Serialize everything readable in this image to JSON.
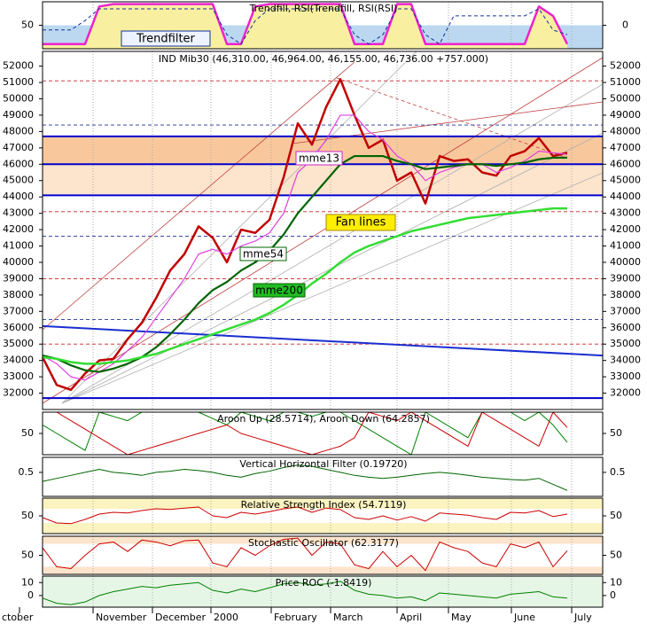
{
  "chart_data": [
    {
      "type": "line",
      "title": "Trendfill, RSI(Trendfill, RSI(RSI)",
      "label": "Trendfilter",
      "ylim": [
        0,
        100
      ],
      "yticks": [
        50
      ],
      "y2lim": [
        -1,
        1
      ],
      "y2ticks": [
        0
      ],
      "bands": [
        {
          "range": [
            0,
            50
          ],
          "color": "#bcd8f0"
        }
      ],
      "series": [
        {
          "color": "#ee22cc",
          "fill": "#f8f0a0",
          "width": 2.5,
          "values": [
            10,
            10,
            10,
            10,
            90,
            95,
            95,
            95,
            95,
            95,
            95,
            95,
            95,
            10,
            10,
            90,
            95,
            95,
            95,
            95,
            95,
            95,
            10,
            10,
            10,
            95,
            95,
            10,
            10,
            10,
            10,
            10,
            10,
            10,
            10,
            90,
            70,
            10
          ]
        },
        {
          "color": "#1030a0",
          "dash": true,
          "width": 1,
          "values": [
            40,
            40,
            40,
            60,
            85,
            85,
            85,
            85,
            85,
            85,
            85,
            85,
            85,
            30,
            10,
            60,
            85,
            85,
            85,
            85,
            85,
            85,
            30,
            10,
            30,
            85,
            85,
            30,
            10,
            70,
            70,
            70,
            70,
            70,
            70,
            85,
            40,
            30
          ]
        }
      ]
    },
    {
      "type": "line",
      "title": "IND Mib30 (46,310.00, 46,964.00, 46,155.00, 46,736.00 +757.000)",
      "annotation": "Fan lines",
      "ylim": [
        31000,
        52900
      ],
      "yticks": [
        32000,
        33000,
        34000,
        35000,
        36000,
        37000,
        38000,
        39000,
        40000,
        41000,
        42000,
        43000,
        44000,
        45000,
        46000,
        47000,
        48000,
        49000,
        50000,
        51000,
        52000
      ],
      "bands": [
        {
          "range": [
            46000,
            47700
          ],
          "color": "#f8c89c"
        },
        {
          "range": [
            44100,
            46000
          ],
          "color": "#fde4cc"
        }
      ],
      "hlines": [
        {
          "value": 31700,
          "color": "#0000cc"
        },
        {
          "value": 44100,
          "color": "#0000cc"
        },
        {
          "value": 46000,
          "color": "#0000cc"
        },
        {
          "value": 47700,
          "color": "#0000cc"
        }
      ],
      "dashed_lines": [
        51100,
        48400,
        43100,
        41600,
        39000,
        36500,
        35000
      ],
      "trendline": [
        36100,
        34300
      ],
      "x_labels": [
        "ctober",
        "November",
        "December",
        "2000",
        "February",
        "March",
        "April",
        "May",
        "June",
        "July"
      ],
      "series": [
        {
          "color": "#c00000",
          "width": 2.5,
          "values": [
            34200,
            32500,
            32200,
            33200,
            34000,
            34100,
            35300,
            36300,
            37800,
            39500,
            40500,
            42200,
            41500,
            40000,
            42000,
            41800,
            42600,
            45200,
            48500,
            47200,
            49500,
            51200,
            49000,
            47000,
            47500,
            45000,
            45500,
            43600,
            46500,
            46200,
            46300,
            45500,
            45300,
            46500,
            46800,
            47600,
            46500,
            46700
          ]
        },
        {
          "name": "mme13",
          "color": "#e040e0",
          "width": 1.2,
          "values": [
            34300,
            33800,
            33000,
            32800,
            33300,
            33800,
            34600,
            35400,
            36600,
            37800,
            39000,
            40500,
            40800,
            40500,
            41000,
            41300,
            41800,
            43000,
            45500,
            46300,
            47500,
            49000,
            49000,
            48000,
            47500,
            46500,
            46000,
            45000,
            45500,
            45800,
            46000,
            46000,
            45500,
            45800,
            46200,
            46800,
            46700,
            46600
          ]
        },
        {
          "name": "mme54",
          "color": "#006400",
          "width": 2.2,
          "values": [
            34300,
            34100,
            33700,
            33400,
            33300,
            33500,
            33800,
            34200,
            34800,
            35600,
            36500,
            37500,
            38300,
            38800,
            39500,
            40000,
            40700,
            41700,
            43000,
            44000,
            45000,
            46000,
            46500,
            46500,
            46500,
            46200,
            46000,
            45700,
            45800,
            45900,
            46000,
            46000,
            45900,
            46000,
            46100,
            46300,
            46400,
            46400
          ]
        },
        {
          "name": "mme200",
          "color": "#33dd33",
          "width": 2.5,
          "values": [
            34200,
            34100,
            33900,
            33800,
            33800,
            33900,
            34000,
            34200,
            34400,
            34700,
            35000,
            35300,
            35600,
            35900,
            36200,
            36500,
            36900,
            37400,
            38000,
            38700,
            39300,
            40000,
            40600,
            41000,
            41300,
            41600,
            41900,
            42100,
            42300,
            42500,
            42700,
            42800,
            42900,
            43000,
            43100,
            43200,
            43300,
            43300
          ]
        }
      ]
    },
    {
      "type": "line",
      "title": "Aroon Up (28.5714), Aroon Down (64.2857)",
      "ylim": [
        0,
        100
      ],
      "yticks": [
        50
      ],
      "series": [
        {
          "color": "#008000",
          "width": 1,
          "values": [
            70,
            50,
            30,
            10,
            100,
            90,
            80,
            100,
            100,
            100,
            100,
            100,
            85,
            70,
            100,
            90,
            80,
            100,
            100,
            90,
            100,
            100,
            80,
            60,
            40,
            20,
            0,
            100,
            80,
            60,
            40,
            100,
            100,
            100,
            80,
            100,
            70,
            29
          ]
        },
        {
          "color": "#cc0000",
          "width": 1,
          "values": [
            100,
            100,
            80,
            60,
            40,
            20,
            0,
            10,
            20,
            30,
            40,
            50,
            60,
            70,
            50,
            40,
            30,
            20,
            10,
            0,
            10,
            20,
            40,
            100,
            90,
            80,
            100,
            80,
            60,
            40,
            20,
            100,
            80,
            60,
            40,
            20,
            100,
            64
          ]
        }
      ]
    },
    {
      "type": "line",
      "title": "Vertical Horizontal Filter (0.19720)",
      "ylim": [
        0.1,
        0.75
      ],
      "yticks": [
        0.5
      ],
      "series": [
        {
          "color": "#006400",
          "width": 1,
          "values": [
            0.35,
            0.4,
            0.45,
            0.5,
            0.55,
            0.5,
            0.48,
            0.45,
            0.5,
            0.52,
            0.55,
            0.53,
            0.5,
            0.45,
            0.42,
            0.48,
            0.52,
            0.58,
            0.62,
            0.6,
            0.55,
            0.5,
            0.45,
            0.42,
            0.4,
            0.42,
            0.45,
            0.48,
            0.5,
            0.48,
            0.45,
            0.42,
            0.4,
            0.38,
            0.37,
            0.4,
            0.3,
            0.2
          ]
        }
      ]
    },
    {
      "type": "line",
      "title": "Relative Strength Index (54.7119)",
      "ylim": [
        0,
        100
      ],
      "yticks": [
        50
      ],
      "bands": [
        {
          "range": [
            70,
            100
          ],
          "color": "#fbf3c0"
        },
        {
          "range": [
            0,
            30
          ],
          "color": "#fbf3c0"
        }
      ],
      "series": [
        {
          "color": "#cc0000",
          "width": 1,
          "values": [
            45,
            30,
            28,
            40,
            55,
            60,
            58,
            65,
            70,
            68,
            72,
            75,
            50,
            45,
            60,
            55,
            62,
            70,
            75,
            60,
            72,
            68,
            45,
            40,
            50,
            38,
            48,
            35,
            58,
            55,
            52,
            45,
            40,
            60,
            58,
            65,
            48,
            55
          ]
        }
      ]
    },
    {
      "type": "line",
      "title": "Stochastic Oscillator (62.3177)",
      "ylim": [
        0,
        100
      ],
      "yticks": [
        50
      ],
      "bands": [
        {
          "range": [
            80,
            100
          ],
          "color": "#fde4cc"
        },
        {
          "range": [
            0,
            20
          ],
          "color": "#fde4cc"
        }
      ],
      "series": [
        {
          "color": "#cc0000",
          "width": 1,
          "values": [
            70,
            20,
            15,
            50,
            80,
            85,
            60,
            90,
            85,
            75,
            88,
            90,
            30,
            20,
            70,
            50,
            75,
            92,
            95,
            50,
            85,
            80,
            25,
            15,
            60,
            20,
            50,
            10,
            85,
            70,
            60,
            30,
            20,
            80,
            70,
            85,
            20,
            62
          ]
        }
      ]
    },
    {
      "type": "line",
      "title": "Price ROC (-1.8419)",
      "ylim": [
        -9,
        15
      ],
      "yticks": [
        0,
        10
      ],
      "bands": [
        {
          "range": [
            -9,
            15
          ],
          "color": "#e6f6e6"
        }
      ],
      "series": [
        {
          "color": "#008000",
          "width": 1,
          "values": [
            -2,
            -6,
            -7,
            -5,
            0,
            3,
            5,
            7,
            6,
            8,
            9,
            10,
            4,
            2,
            5,
            3,
            6,
            9,
            10,
            8,
            9,
            11,
            4,
            1,
            0,
            -2,
            -1,
            -4,
            2,
            1,
            0,
            -1,
            -2,
            1,
            2,
            3,
            -1,
            -2
          ]
        }
      ]
    }
  ]
}
